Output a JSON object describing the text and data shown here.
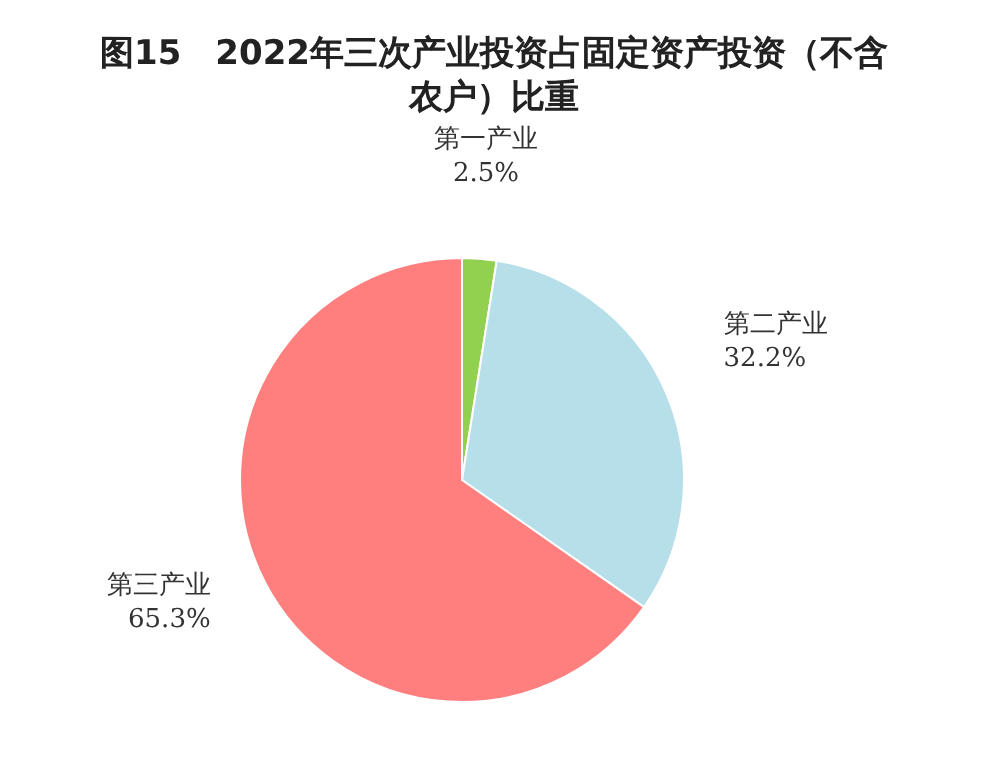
{
  "chart_data": {
    "type": "pie",
    "title": "图15　2022年三次产业投资占固定资产投资（不含农户）比重",
    "categories": [
      "第一产业",
      "第二产业",
      "第三产业"
    ],
    "values": [
      2.5,
      32.2,
      65.3
    ],
    "colors": [
      "#92d050",
      "#b7dfe9",
      "#ff7f7f"
    ],
    "value_labels": [
      "2.5%",
      "32.2%",
      "65.3%"
    ]
  }
}
